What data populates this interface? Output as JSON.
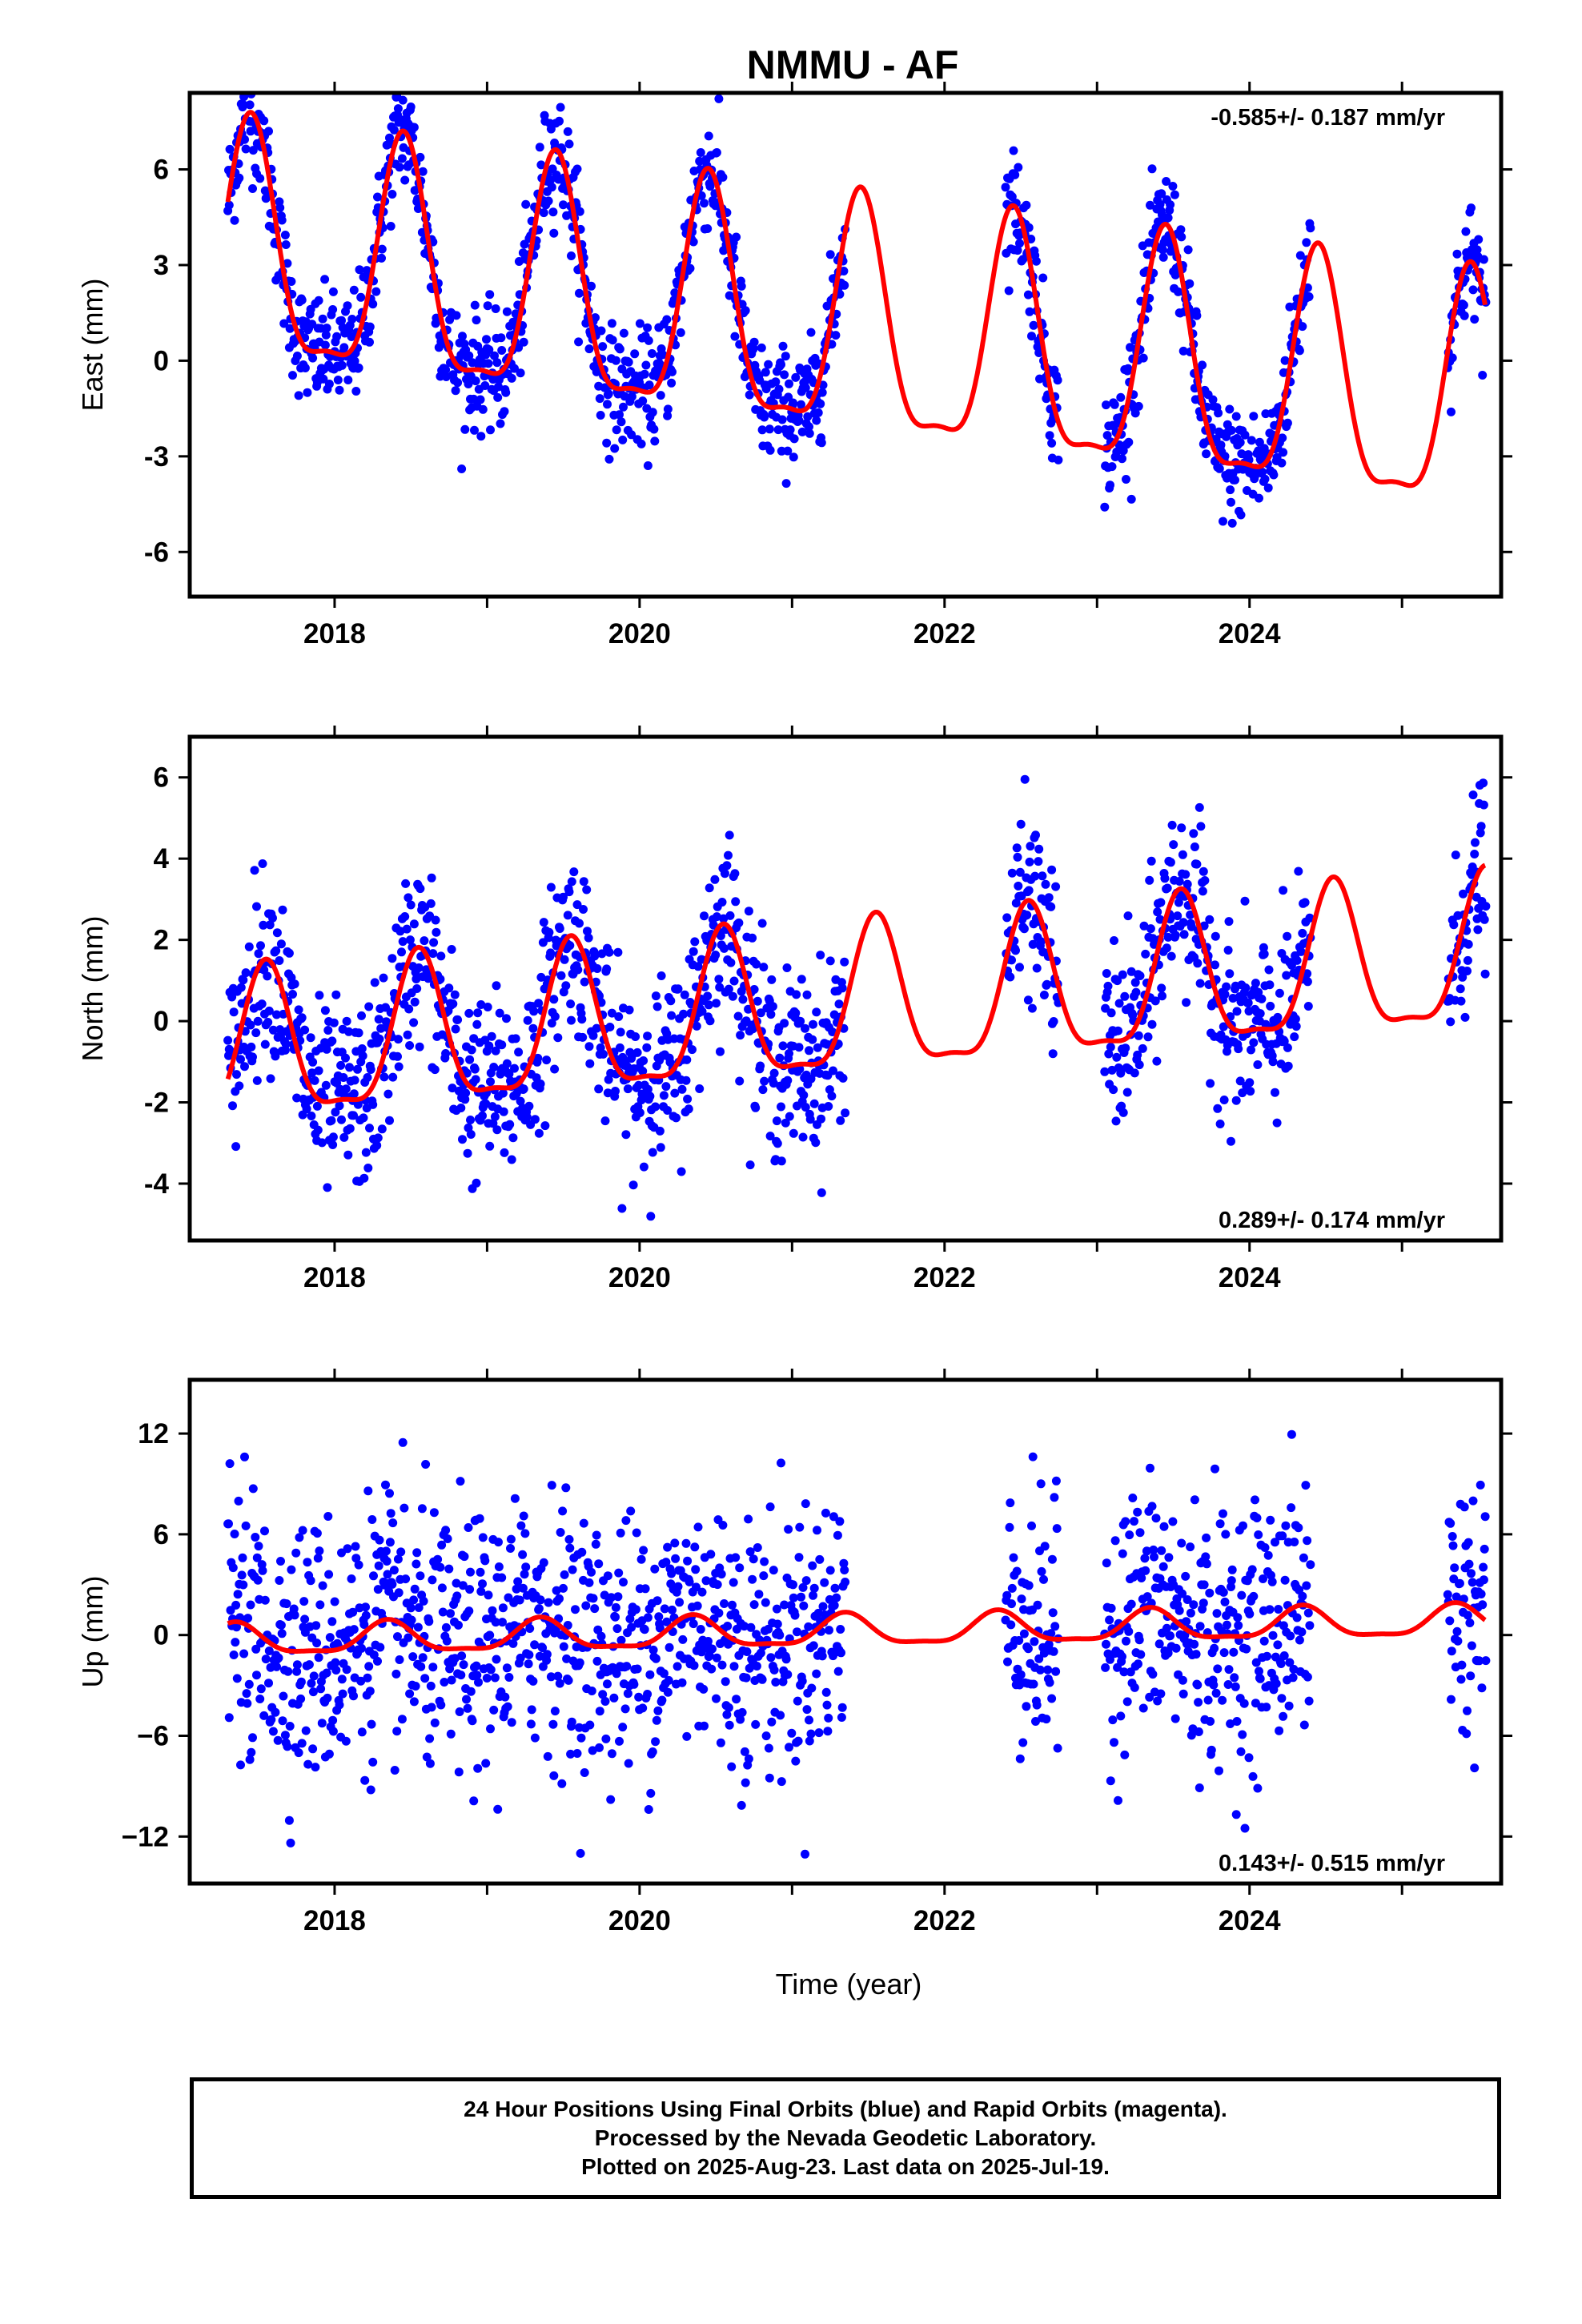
{
  "title": "NMMU - AF",
  "xlabel": "Time (year)",
  "footer": {
    "line1": "24 Hour Positions Using Final Orbits (blue) and Rapid Orbits (magenta).",
    "line2": "Processed by the Nevada Geodetic Laboratory.",
    "line3": "Plotted on 2025-Aug-23. Last data on 2025-Jul-19."
  },
  "colors": {
    "points": "#0000ff",
    "model": "#ff0000",
    "frame": "#000000"
  },
  "chart_data": [
    {
      "type": "scatter",
      "id": "east",
      "ylabel": "East (mm)",
      "rate": "-0.585+/- 0.187 mm/yr",
      "rate_position": "top-right",
      "xlim": [
        2017.05,
        2025.65
      ],
      "ylim": [
        -7.4,
        8.4
      ],
      "xticks": [
        2018,
        2020,
        2022,
        2024
      ],
      "xtick_labels": [
        "2018",
        "2020",
        "2022",
        "2024"
      ],
      "yticks": [
        -6,
        -3,
        0,
        3,
        6
      ],
      "ytick_labels": [
        "-6",
        "-3",
        "0",
        "3",
        "6"
      ],
      "model": {
        "mean": 4.2,
        "trend": -0.585,
        "amplitude": 3.6,
        "phase_peak": 0.45,
        "start_offset": 0.0
      },
      "data_periods": [
        [
          2017.3,
          2021.35
        ],
        [
          2022.4,
          2022.75
        ],
        [
          2023.05,
          2024.4
        ],
        [
          2025.3,
          2025.55
        ]
      ],
      "scatter_sigma": 0.9
    },
    {
      "type": "scatter",
      "id": "north",
      "ylabel": "North (mm)",
      "rate": "0.289+/- 0.174 mm/yr",
      "rate_position": "bottom-right",
      "xlim": [
        2017.05,
        2025.65
      ],
      "ylim": [
        -5.4,
        7.0
      ],
      "xticks": [
        2018,
        2020,
        2022,
        2024
      ],
      "xtick_labels": [
        "2018",
        "2020",
        "2022",
        "2024"
      ],
      "yticks": [
        -4,
        -2,
        0,
        2,
        4,
        6
      ],
      "ytick_labels": [
        "-4",
        "-2",
        "0",
        "2",
        "4",
        "6"
      ],
      "model": {
        "mean": -0.3,
        "trend": 0.289,
        "amplitude": 1.8,
        "phase_peak": 0.55,
        "start_offset": 0.0
      },
      "data_periods": [
        [
          2017.3,
          2021.35
        ],
        [
          2022.4,
          2022.75
        ],
        [
          2023.05,
          2024.4
        ],
        [
          2025.3,
          2025.55
        ]
      ],
      "scatter_sigma": 1.1
    },
    {
      "type": "scatter",
      "id": "up",
      "ylabel": "Up (mm)",
      "rate": "0.143+/- 0.515 mm/yr",
      "rate_position": "bottom-right",
      "xlim": [
        2017.05,
        2025.65
      ],
      "ylim": [
        -14.8,
        15.2
      ],
      "xticks": [
        2018,
        2020,
        2022,
        2024
      ],
      "xtick_labels": [
        "2018",
        "2020",
        "2022",
        "2024"
      ],
      "yticks": [
        -12,
        -6,
        0,
        6,
        12
      ],
      "ytick_labels": [
        "−12",
        "−6",
        "0",
        "6",
        "12"
      ],
      "model": {
        "mean": 0.2,
        "trend": 0.143,
        "amplitude": 0.9,
        "phase_peak": 0.35,
        "start_offset": 0.0
      },
      "data_periods": [
        [
          2017.3,
          2021.35
        ],
        [
          2022.4,
          2022.75
        ],
        [
          2023.05,
          2024.4
        ],
        [
          2025.3,
          2025.55
        ]
      ],
      "scatter_sigma": 3.8
    }
  ]
}
